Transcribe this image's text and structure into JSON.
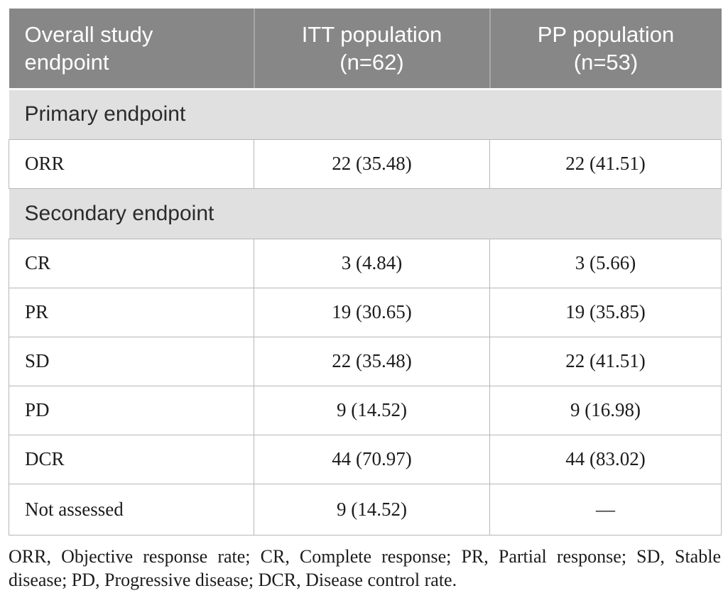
{
  "table": {
    "header": {
      "endpoint": {
        "line1": "Overall study",
        "line2": "endpoint"
      },
      "itt": {
        "line1": "ITT population",
        "line2": "(n=62)"
      },
      "pp": {
        "line1": "PP population",
        "line2": "(n=53)"
      }
    },
    "sections": [
      {
        "title": "Primary endpoint",
        "rows": [
          {
            "label": "ORR",
            "itt": "22 (35.48)",
            "pp": "22 (41.51)"
          }
        ]
      },
      {
        "title": "Secondary endpoint",
        "rows": [
          {
            "label": "CR",
            "itt": "3 (4.84)",
            "pp": "3 (5.66)"
          },
          {
            "label": "PR",
            "itt": "19 (30.65)",
            "pp": "19 (35.85)"
          },
          {
            "label": "SD",
            "itt": "22 (35.48)",
            "pp": "22 (41.51)"
          },
          {
            "label": "PD",
            "itt": "9 (14.52)",
            "pp": "9 (16.98)"
          },
          {
            "label": "DCR",
            "itt": "44 (70.97)",
            "pp": "44 (83.02)"
          },
          {
            "label": "Not assessed",
            "itt": "9 (14.52)",
            "pp": "—"
          }
        ]
      }
    ],
    "footnote": "ORR, Objective response rate; CR, Complete response; PR, Partial response; SD, Stable disease; PD, Progressive disease; DCR, Disease control rate."
  },
  "colors": {
    "header_bg": "#878787",
    "header_text": "#ffffff",
    "section_bg": "#e0e0e0",
    "body_text": "#1c1c1c",
    "border": "#b7b7b7"
  }
}
